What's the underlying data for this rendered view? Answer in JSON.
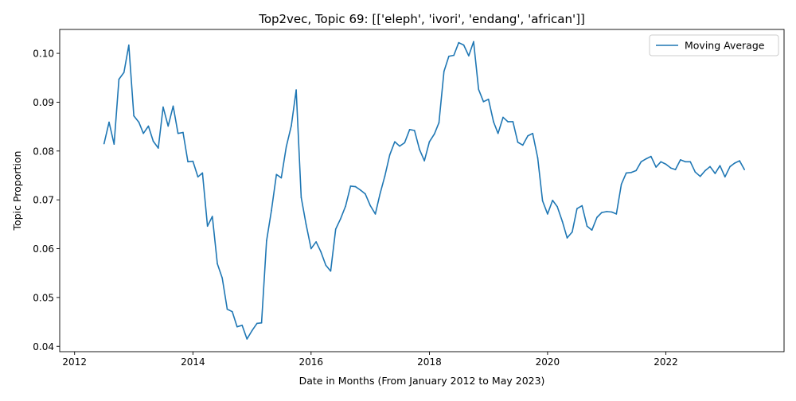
{
  "chart_data": {
    "type": "line",
    "title": "Top2vec, Topic 69: [['eleph', 'ivori', 'endang', 'african']]",
    "xlabel": "Date in Months (From January 2012 to May 2023)",
    "ylabel": "Topic Proportion",
    "xlim": [
      "2011-10-01",
      "2024-01-01"
    ],
    "ylim": [
      0.0389,
      0.1049
    ],
    "x_ticks": [
      {
        "value": "2012-01-01",
        "label": "2012"
      },
      {
        "value": "2014-01-01",
        "label": "2014"
      },
      {
        "value": "2016-01-01",
        "label": "2016"
      },
      {
        "value": "2018-01-01",
        "label": "2018"
      },
      {
        "value": "2020-01-01",
        "label": "2020"
      },
      {
        "value": "2022-01-01",
        "label": "2022"
      }
    ],
    "y_ticks": [
      {
        "value": 0.04,
        "label": "0.04"
      },
      {
        "value": 0.05,
        "label": "0.05"
      },
      {
        "value": 0.06,
        "label": "0.06"
      },
      {
        "value": 0.07,
        "label": "0.07"
      },
      {
        "value": 0.08,
        "label": "0.08"
      },
      {
        "value": 0.09,
        "label": "0.09"
      },
      {
        "value": 0.1,
        "label": "0.10"
      }
    ],
    "grid": false,
    "legend": {
      "placement": "top-right"
    },
    "series": [
      {
        "name": "Moving Average",
        "color": "#1f77b4",
        "x": [
          "2012-07-01",
          "2012-08-01",
          "2012-09-01",
          "2012-10-01",
          "2012-11-01",
          "2012-12-01",
          "2013-01-01",
          "2013-02-01",
          "2013-03-01",
          "2013-04-01",
          "2013-05-01",
          "2013-06-01",
          "2013-07-01",
          "2013-08-01",
          "2013-09-01",
          "2013-10-01",
          "2013-11-01",
          "2013-12-01",
          "2014-01-01",
          "2014-02-01",
          "2014-03-01",
          "2014-04-01",
          "2014-05-01",
          "2014-06-01",
          "2014-07-01",
          "2014-08-01",
          "2014-09-01",
          "2014-10-01",
          "2014-11-01",
          "2014-12-01",
          "2015-01-01",
          "2015-02-01",
          "2015-03-01",
          "2015-04-01",
          "2015-05-01",
          "2015-06-01",
          "2015-07-01",
          "2015-08-01",
          "2015-09-01",
          "2015-10-01",
          "2015-11-01",
          "2015-12-01",
          "2016-01-01",
          "2016-02-01",
          "2016-03-01",
          "2016-04-01",
          "2016-05-01",
          "2016-06-01",
          "2016-07-01",
          "2016-08-01",
          "2016-09-01",
          "2016-10-01",
          "2016-11-01",
          "2016-12-01",
          "2017-01-01",
          "2017-02-01",
          "2017-03-01",
          "2017-04-01",
          "2017-05-01",
          "2017-06-01",
          "2017-07-01",
          "2017-08-01",
          "2017-09-01",
          "2017-10-01",
          "2017-11-01",
          "2017-12-01",
          "2018-01-01",
          "2018-02-01",
          "2018-03-01",
          "2018-04-01",
          "2018-05-01",
          "2018-06-01",
          "2018-07-01",
          "2018-08-01",
          "2018-09-01",
          "2018-10-01",
          "2018-11-01",
          "2018-12-01",
          "2019-01-01",
          "2019-02-01",
          "2019-03-01",
          "2019-04-01",
          "2019-05-01",
          "2019-06-01",
          "2019-07-01",
          "2019-08-01",
          "2019-09-01",
          "2019-10-01",
          "2019-11-01",
          "2019-12-01",
          "2020-01-01",
          "2020-02-01",
          "2020-03-01",
          "2020-04-01",
          "2020-05-01",
          "2020-06-01",
          "2020-07-01",
          "2020-08-01",
          "2020-09-01",
          "2020-10-01",
          "2020-11-01",
          "2020-12-01",
          "2021-01-01",
          "2021-02-01",
          "2021-03-01",
          "2021-04-01",
          "2021-05-01",
          "2021-06-01",
          "2021-07-01",
          "2021-08-01",
          "2021-09-01",
          "2021-10-01",
          "2021-11-01",
          "2021-12-01",
          "2022-01-01",
          "2022-02-01",
          "2022-03-01",
          "2022-04-01",
          "2022-05-01",
          "2022-06-01",
          "2022-07-01",
          "2022-08-01",
          "2022-09-01",
          "2022-10-01",
          "2022-11-01",
          "2022-12-01",
          "2023-01-01",
          "2023-02-01",
          "2023-03-01",
          "2023-04-01",
          "2023-05-01"
        ],
        "y": [
          0.0815,
          0.0859,
          0.0814,
          0.0947,
          0.0961,
          0.1017,
          0.0872,
          0.0859,
          0.0836,
          0.0851,
          0.082,
          0.0806,
          0.089,
          0.0851,
          0.0892,
          0.0836,
          0.0838,
          0.0778,
          0.0779,
          0.0747,
          0.0755,
          0.0646,
          0.0666,
          0.0569,
          0.054,
          0.0476,
          0.0471,
          0.044,
          0.0443,
          0.0415,
          0.0432,
          0.0447,
          0.0448,
          0.0616,
          0.0678,
          0.0752,
          0.0745,
          0.0809,
          0.0852,
          0.0925,
          0.0705,
          0.065,
          0.06,
          0.0614,
          0.0594,
          0.0566,
          0.0554,
          0.064,
          0.0661,
          0.0687,
          0.0728,
          0.0727,
          0.072,
          0.0712,
          0.0688,
          0.0671,
          0.0711,
          0.0749,
          0.0792,
          0.0819,
          0.081,
          0.0817,
          0.0844,
          0.0842,
          0.0803,
          0.078,
          0.0819,
          0.0835,
          0.0858,
          0.0963,
          0.0994,
          0.0996,
          0.1022,
          0.1017,
          0.0995,
          0.1024,
          0.0926,
          0.0901,
          0.0906,
          0.086,
          0.0836,
          0.0869,
          0.086,
          0.086,
          0.0818,
          0.0812,
          0.0831,
          0.0836,
          0.0786,
          0.0698,
          0.0671,
          0.0699,
          0.0686,
          0.0656,
          0.0622,
          0.0634,
          0.0682,
          0.0688,
          0.0646,
          0.0638,
          0.0664,
          0.0674,
          0.0676,
          0.0675,
          0.0671,
          0.0732,
          0.0755,
          0.0756,
          0.076,
          0.0778,
          0.0784,
          0.0789,
          0.0767,
          0.0778,
          0.0773,
          0.0765,
          0.0762,
          0.0782,
          0.0778,
          0.0778,
          0.0757,
          0.0748,
          0.076,
          0.0768,
          0.0754,
          0.077,
          0.0747,
          0.0768,
          0.0775,
          0.078,
          0.0762
        ]
      }
    ]
  }
}
